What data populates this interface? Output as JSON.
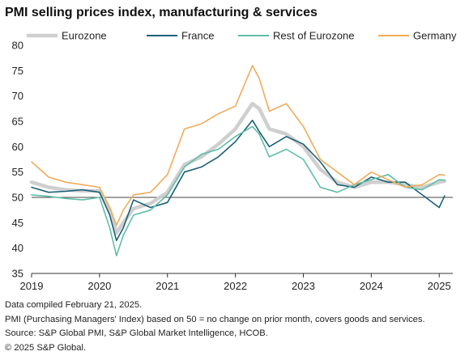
{
  "chart_data": {
    "type": "line",
    "title": "PMI selling prices index, manufacturing & services",
    "xlabel": "",
    "ylabel": "",
    "ylim": [
      35,
      80
    ],
    "yticks": [
      35,
      40,
      45,
      50,
      55,
      60,
      65,
      70,
      75,
      80
    ],
    "xlim": [
      2019.0,
      2025.2
    ],
    "xticks": [
      {
        "value": 2019,
        "label": "2019"
      },
      {
        "value": 2020,
        "label": "2020"
      },
      {
        "value": 2021,
        "label": "2021"
      },
      {
        "value": 2022,
        "label": "2022"
      },
      {
        "value": 2023,
        "label": "2023"
      },
      {
        "value": 2024,
        "label": "2024"
      },
      {
        "value": 2025,
        "label": "2025"
      }
    ],
    "reference_line": 50,
    "legend_position": "top",
    "grid": false,
    "x": [
      2019.0,
      2019.25,
      2019.5,
      2019.75,
      2020.0,
      2020.15,
      2020.25,
      2020.35,
      2020.5,
      2020.75,
      2021.0,
      2021.25,
      2021.5,
      2021.75,
      2022.0,
      2022.25,
      2022.35,
      2022.5,
      2022.75,
      2023.0,
      2023.25,
      2023.5,
      2023.75,
      2024.0,
      2024.25,
      2024.5,
      2024.75,
      2025.0,
      2025.08
    ],
    "series": [
      {
        "name": "Eurozone",
        "color": "#cfcfcf",
        "width": 4.5,
        "values": [
          53.0,
          52.0,
          51.5,
          51.3,
          51.3,
          47.5,
          43.0,
          45.0,
          47.8,
          48.8,
          51.0,
          56.5,
          58.0,
          60.5,
          63.5,
          68.5,
          67.5,
          63.5,
          62.5,
          60.0,
          55.5,
          53.0,
          52.0,
          53.0,
          53.0,
          52.5,
          52.0,
          53.0,
          53.2
        ]
      },
      {
        "name": "France",
        "color": "#1c6178",
        "width": 1.6,
        "values": [
          52.0,
          51.0,
          51.2,
          51.5,
          51.0,
          46.5,
          41.5,
          44.0,
          49.5,
          48.0,
          49.0,
          55.0,
          56.0,
          58.0,
          61.0,
          65.2,
          63.0,
          60.0,
          62.0,
          60.5,
          57.0,
          52.5,
          52.0,
          54.0,
          53.0,
          53.0,
          50.5,
          48.0,
          50.3
        ]
      },
      {
        "name": "Rest of Eurozone",
        "color": "#5fbea8",
        "width": 1.6,
        "values": [
          50.5,
          50.2,
          49.8,
          49.5,
          50.0,
          44.0,
          38.5,
          42.5,
          46.5,
          47.5,
          50.5,
          56.0,
          58.5,
          59.5,
          62.0,
          64.0,
          62.5,
          58.0,
          59.5,
          57.5,
          52.0,
          51.0,
          52.5,
          53.5,
          54.5,
          52.0,
          51.5,
          53.5,
          53.4
        ]
      },
      {
        "name": "Germany",
        "color": "#f0ac5a",
        "width": 1.6,
        "values": [
          57.0,
          54.0,
          53.0,
          52.5,
          52.0,
          48.0,
          44.5,
          47.5,
          50.5,
          51.0,
          54.5,
          63.5,
          64.5,
          66.5,
          68.0,
          76.0,
          73.5,
          67.0,
          68.5,
          64.0,
          57.5,
          55.0,
          52.5,
          55.0,
          53.5,
          52.0,
          52.5,
          54.5,
          54.4
        ]
      }
    ]
  },
  "notes": {
    "compiled": "Data compiled February 21, 2025.",
    "definition": "PMI (Purchasing Managers' Index) based on 50 = no change on prior month, covers goods and services.",
    "source": "Source: S&P Global PMI, S&P Global Market Intelligence, HCOB.",
    "copyright": "© 2025 S&P Global."
  }
}
